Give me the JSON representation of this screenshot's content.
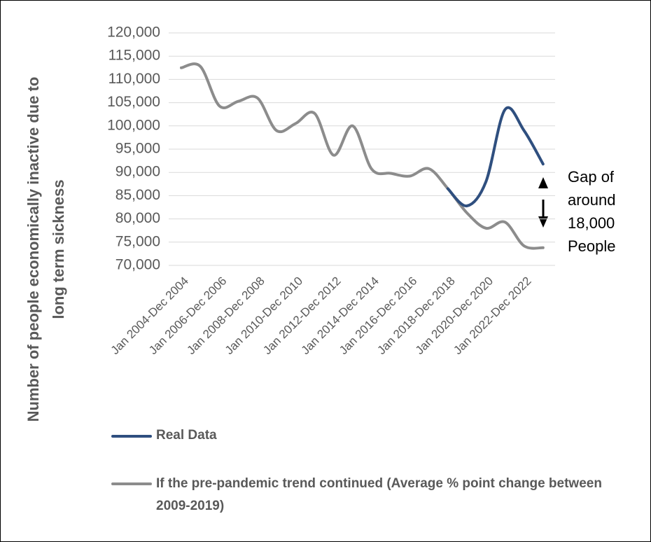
{
  "chart_data": {
    "type": "line",
    "y_label": [
      "Number of people economically inactive due to",
      "long term sickness"
    ],
    "categories": [
      "Jan 2004-Dec 2004",
      null,
      "Jan 2006-Dec 2006",
      null,
      "Jan 2008-Dec 2008",
      null,
      "Jan 2010-Dec 2010",
      null,
      "Jan 2012-Dec 2012",
      null,
      "Jan 2014-Dec 2014",
      null,
      "Jan 2016-Dec 2016",
      null,
      "Jan 2018-Dec 2018",
      null,
      "Jan 2020-Dec 2020",
      null,
      "Jan 2022-Dec 2022",
      null
    ],
    "series": [
      {
        "name": "Real Data",
        "color": "#2f4f7f",
        "values": [
          null,
          null,
          null,
          null,
          null,
          null,
          null,
          null,
          null,
          null,
          null,
          null,
          null,
          null,
          86500,
          82800,
          88000,
          103500,
          99000,
          91800
        ]
      },
      {
        "name": "If the pre-pandemic trend continued (Average % point change between 2009-2019)",
        "color": "#8c8c8c",
        "values": [
          112500,
          112800,
          104300,
          105300,
          106000,
          99000,
          100500,
          102700,
          93700,
          100000,
          90700,
          89800,
          89200,
          90800,
          86500,
          81300,
          78000,
          79300,
          74200,
          73800
        ]
      }
    ],
    "ylim": [
      70000,
      120000
    ],
    "yticks": [
      {
        "value": 70000,
        "label": "70,000"
      },
      {
        "value": 75000,
        "label": "75,000"
      },
      {
        "value": 80000,
        "label": "80,000"
      },
      {
        "value": 85000,
        "label": "85,000"
      },
      {
        "value": 90000,
        "label": "90,000"
      },
      {
        "value": 95000,
        "label": "95,000"
      },
      {
        "value": 100000,
        "label": "100,000"
      },
      {
        "value": 105000,
        "label": "105,000"
      },
      {
        "value": 110000,
        "label": "110,000"
      },
      {
        "value": 115000,
        "label": "115,000"
      },
      {
        "value": 120000,
        "label": "120,000"
      }
    ],
    "grid": true,
    "annotation": [
      "Gap of",
      "around",
      "18,000",
      "People"
    ]
  }
}
